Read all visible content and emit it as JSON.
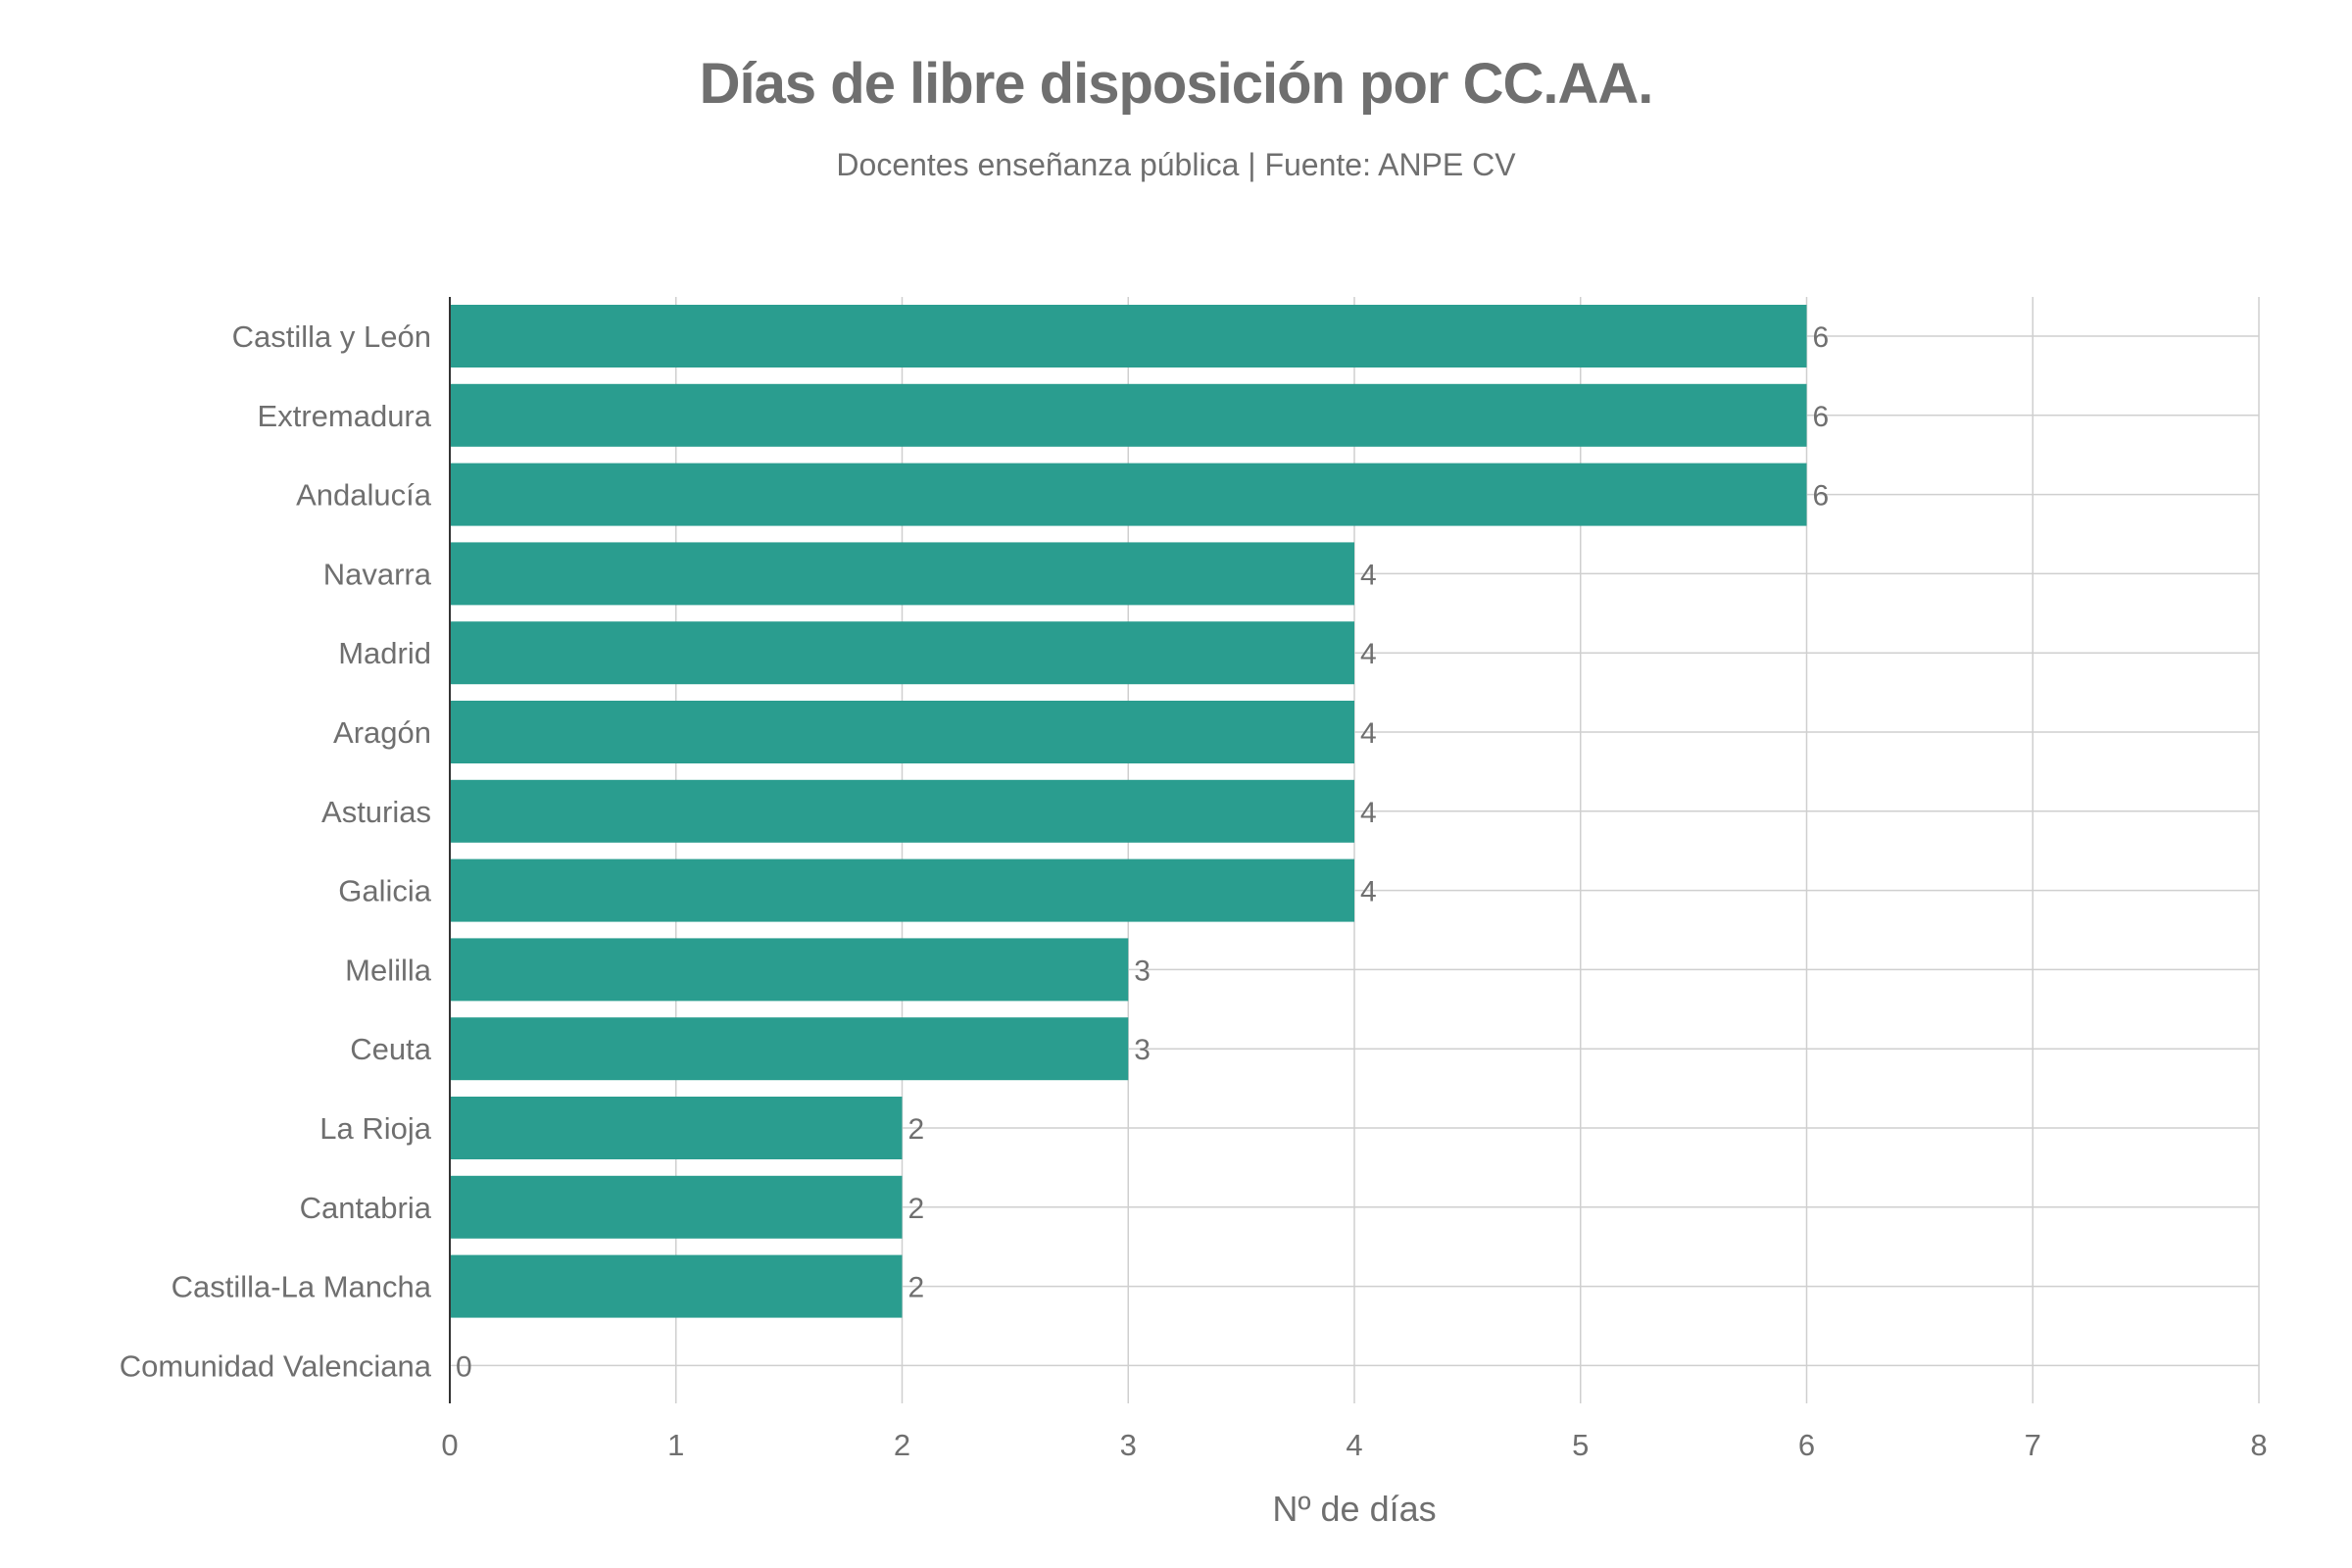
{
  "chart_data": {
    "type": "bar",
    "orientation": "horizontal",
    "title": "Días de libre disposición por CC.AA.",
    "subtitle": "Docentes enseñanza pública | Fuente: ANPE CV",
    "xlabel": "Nº de días",
    "ylabel": "",
    "categories": [
      "Castilla y León",
      "Extremadura",
      "Andalucía",
      "Navarra",
      "Madrid",
      "Aragón",
      "Asturias",
      "Galicia",
      "Melilla",
      "Ceuta",
      "La Rioja",
      "Cantabria",
      "Castilla-La Mancha",
      "Comunidad Valenciana"
    ],
    "values": [
      6,
      6,
      6,
      4,
      4,
      4,
      4,
      4,
      3,
      3,
      2,
      2,
      2,
      0
    ],
    "xlim": [
      0,
      8
    ],
    "xticks": [
      0,
      1,
      2,
      3,
      4,
      5,
      6,
      7,
      8
    ],
    "grid": true,
    "colors": {
      "bar": "#2a9d8f",
      "text": "#6f6f6f",
      "grid": "#cfcfcf"
    }
  }
}
